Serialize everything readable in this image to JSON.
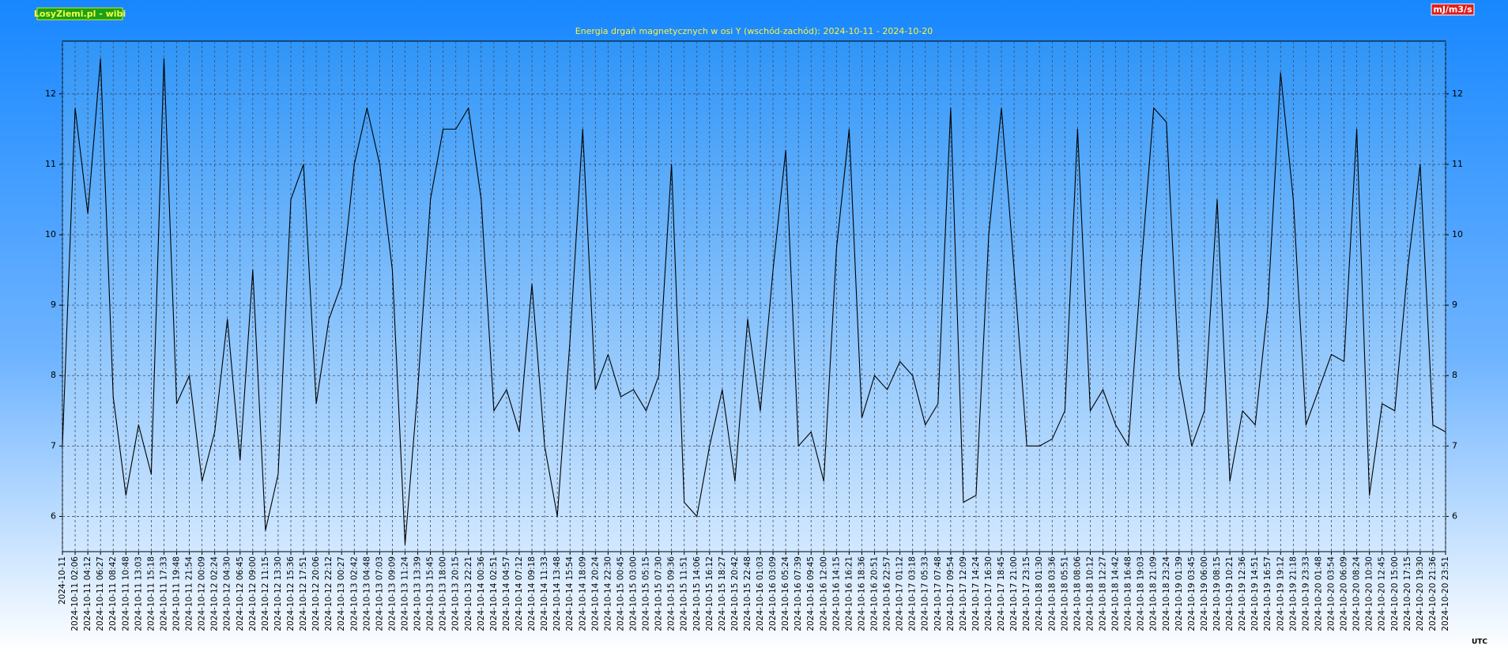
{
  "chart_data": {
    "type": "line",
    "title": "Energia drgań magnetycznych w osi Y (wschód-zachód): 2024-10-11 - 2024-10-20",
    "source": "LosyZiemi.pl - wibi",
    "unit": "mJ/m3/s",
    "timezone": "UTC",
    "color": "#000000",
    "grid": true,
    "ylim": [
      5.5,
      12.75
    ],
    "yticks": [
      6,
      7,
      8,
      9,
      10,
      11,
      12
    ],
    "categories": [
      "2024-10-11",
      "2024-10-11 02:06",
      "2024-10-11 04:12",
      "2024-10-11 06:27",
      "2024-10-11 08:42",
      "2024-10-11 10:48",
      "2024-10-11 13:03",
      "2024-10-11 15:18",
      "2024-10-11 17:33",
      "2024-10-11 19:48",
      "2024-10-11 21:54",
      "2024-10-12 00:09",
      "2024-10-12 02:24",
      "2024-10-12 04:30",
      "2024-10-12 06:45",
      "2024-10-12 09:00",
      "2024-10-12 11:15",
      "2024-10-12 13:30",
      "2024-10-12 15:36",
      "2024-10-12 17:51",
      "2024-10-12 20:06",
      "2024-10-12 22:12",
      "2024-10-13 00:27",
      "2024-10-13 02:42",
      "2024-10-13 04:48",
      "2024-10-13 07:03",
      "2024-10-13 09:09",
      "2024-10-13 11:24",
      "2024-10-13 13:39",
      "2024-10-13 15:45",
      "2024-10-13 18:00",
      "2024-10-13 20:15",
      "2024-10-13 22:21",
      "2024-10-14 00:36",
      "2024-10-14 02:51",
      "2024-10-14 04:57",
      "2024-10-14 07:12",
      "2024-10-14 09:18",
      "2024-10-14 11:33",
      "2024-10-14 13:48",
      "2024-10-14 15:54",
      "2024-10-14 18:09",
      "2024-10-14 20:24",
      "2024-10-14 22:30",
      "2024-10-15 00:45",
      "2024-10-15 03:00",
      "2024-10-15 05:15",
      "2024-10-15 07:30",
      "2024-10-15 09:36",
      "2024-10-15 11:51",
      "2024-10-15 14:06",
      "2024-10-15 16:12",
      "2024-10-15 18:27",
      "2024-10-15 20:42",
      "2024-10-15 22:48",
      "2024-10-16 01:03",
      "2024-10-16 03:09",
      "2024-10-16 05:24",
      "2024-10-16 07:39",
      "2024-10-16 09:45",
      "2024-10-16 12:00",
      "2024-10-16 14:15",
      "2024-10-16 16:21",
      "2024-10-16 18:36",
      "2024-10-16 20:51",
      "2024-10-16 22:57",
      "2024-10-17 01:12",
      "2024-10-17 03:18",
      "2024-10-17 05:33",
      "2024-10-17 07:48",
      "2024-10-17 09:54",
      "2024-10-17 12:09",
      "2024-10-17 14:24",
      "2024-10-17 16:30",
      "2024-10-17 18:45",
      "2024-10-17 21:00",
      "2024-10-17 23:15",
      "2024-10-18 01:30",
      "2024-10-18 03:36",
      "2024-10-18 05:51",
      "2024-10-18 08:06",
      "2024-10-18 10:12",
      "2024-10-18 12:27",
      "2024-10-18 14:42",
      "2024-10-18 16:48",
      "2024-10-18 19:03",
      "2024-10-18 21:09",
      "2024-10-18 23:24",
      "2024-10-19 01:39",
      "2024-10-19 03:45",
      "2024-10-19 06:00",
      "2024-10-19 08:15",
      "2024-10-19 10:21",
      "2024-10-19 12:36",
      "2024-10-19 14:51",
      "2024-10-19 16:57",
      "2024-10-19 19:12",
      "2024-10-19 21:18",
      "2024-10-19 23:33",
      "2024-10-20 01:48",
      "2024-10-20 03:54",
      "2024-10-20 06:09",
      "2024-10-20 08:24",
      "2024-10-20 10:30",
      "2024-10-20 12:45",
      "2024-10-20 15:00",
      "2024-10-20 17:15",
      "2024-10-20 19:30",
      "2024-10-20 21:36",
      "2024-10-20 23:51"
    ],
    "values": [
      7.0,
      11.8,
      10.3,
      12.5,
      7.7,
      6.3,
      7.3,
      6.6,
      12.5,
      7.6,
      8.0,
      6.5,
      7.2,
      8.8,
      6.8,
      9.5,
      5.8,
      6.6,
      10.5,
      11.0,
      7.6,
      8.8,
      9.3,
      11.0,
      11.8,
      11.0,
      9.5,
      5.6,
      7.8,
      10.5,
      11.5,
      11.5,
      11.8,
      10.5,
      7.5,
      7.8,
      7.2,
      9.3,
      7.0,
      6.0,
      8.5,
      11.5,
      7.8,
      8.3,
      7.7,
      7.8,
      7.5,
      8.0,
      11.0,
      6.2,
      6.0,
      7.0,
      7.8,
      6.5,
      8.8,
      7.5,
      9.5,
      11.2,
      7.0,
      7.2,
      6.5,
      9.8,
      11.5,
      7.4,
      8.0,
      7.8,
      8.2,
      8.0,
      7.3,
      7.6,
      11.8,
      6.2,
      6.3,
      10.0,
      11.8,
      9.5,
      7.0,
      7.0,
      7.1,
      7.5,
      11.5,
      7.5,
      7.8,
      7.3,
      7.0,
      9.5,
      11.8,
      11.6,
      8.0,
      7.0,
      7.5,
      10.5,
      6.5,
      7.5,
      7.3,
      9.0,
      12.3,
      10.5,
      7.3,
      7.8,
      8.3,
      8.2,
      11.5,
      6.3,
      7.6,
      7.5,
      9.5,
      11.0,
      7.3,
      7.2
    ]
  }
}
